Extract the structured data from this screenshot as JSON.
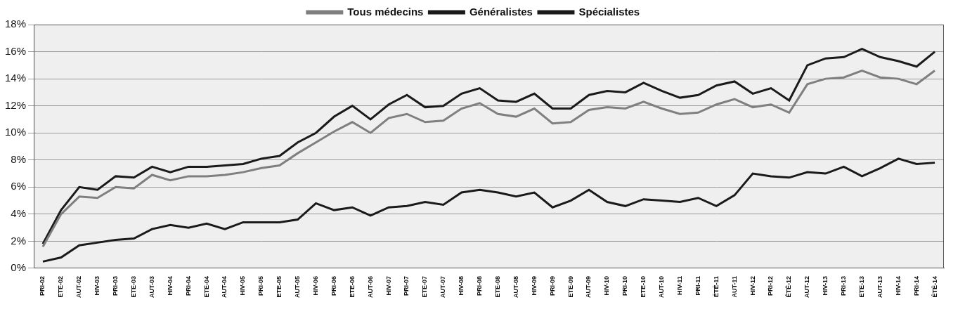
{
  "chart_data": {
    "type": "line",
    "categories": [
      "PRI-02",
      "ETE-02",
      "AUT-02",
      "HIV-03",
      "PRI-03",
      "ETE-03",
      "AUT-03",
      "HIV-04",
      "PRI-04",
      "ETE-04",
      "AUT-04",
      "HIV-05",
      "PRI-05",
      "ETE-05",
      "AUT-05",
      "HIV-06",
      "PRI-06",
      "ETE-06",
      "AUT-06",
      "HIV-07",
      "PRI-07",
      "ETE-07",
      "AUT-07",
      "HIV-08",
      "PRI-08",
      "ETE-08",
      "AUT-08",
      "HIV-09",
      "PRI-09",
      "ETE-09",
      "AUT-09",
      "HIV-10",
      "PRI-10",
      "ETE-10",
      "AUT-10",
      "HIV-11",
      "PRI-11",
      "ÉTÉ-11",
      "AUT-11",
      "HIV-12",
      "PRI-12",
      "ÉTÉ-12",
      "AUT-12",
      "HIV-13",
      "PRI-13",
      "ETE-13",
      "AUT-13",
      "HIV-14",
      "PRI-14",
      "ÉTÉ-14"
    ],
    "series": [
      {
        "name": "Tous médecins",
        "color": "#7f7f7f",
        "marker": "none",
        "line_style": "solid",
        "values": [
          1.6,
          4.0,
          5.3,
          5.2,
          6.0,
          5.9,
          6.9,
          6.5,
          6.8,
          6.8,
          6.9,
          7.1,
          7.4,
          7.6,
          8.5,
          9.3,
          10.1,
          10.8,
          10.0,
          11.1,
          11.4,
          10.8,
          10.9,
          11.8,
          12.2,
          11.4,
          11.2,
          11.8,
          10.7,
          10.8,
          11.7,
          11.9,
          11.8,
          12.3,
          11.8,
          11.4,
          11.5,
          12.1,
          12.5,
          11.9,
          12.1,
          11.5,
          13.6,
          14.0,
          14.1,
          14.6,
          14.1,
          14.0,
          13.6,
          14.6
        ]
      },
      {
        "name": "Généralistes",
        "color": "#1a1a1a",
        "marker": "none",
        "line_style": "solid",
        "values": [
          1.8,
          4.3,
          6.0,
          5.8,
          6.8,
          6.7,
          7.5,
          7.1,
          7.5,
          7.5,
          7.6,
          7.7,
          8.1,
          8.3,
          9.3,
          10.0,
          11.2,
          12.0,
          11.0,
          12.1,
          12.8,
          11.9,
          12.0,
          12.9,
          13.3,
          12.4,
          12.3,
          12.9,
          11.8,
          11.8,
          12.8,
          13.1,
          13.0,
          13.7,
          13.1,
          12.6,
          12.8,
          13.5,
          13.8,
          12.9,
          13.3,
          12.4,
          15.0,
          15.5,
          15.6,
          16.2,
          15.6,
          15.3,
          14.9,
          16.0
        ]
      },
      {
        "name": "Spécialistes",
        "color": "#1a1a1a",
        "marker": "none",
        "line_style": "solid",
        "values": [
          0.5,
          0.8,
          1.7,
          1.9,
          2.1,
          2.2,
          2.9,
          3.2,
          3.0,
          3.3,
          2.9,
          3.4,
          3.4,
          3.4,
          3.6,
          4.8,
          4.3,
          4.5,
          3.9,
          4.5,
          4.6,
          4.9,
          4.7,
          5.6,
          5.8,
          5.6,
          5.3,
          5.6,
          4.5,
          5.0,
          5.8,
          4.9,
          4.6,
          5.1,
          5.0,
          4.9,
          5.2,
          4.6,
          5.4,
          7.0,
          6.8,
          6.7,
          7.1,
          7.0,
          7.5,
          6.8,
          7.4,
          8.1,
          7.7,
          7.8
        ]
      }
    ],
    "ylim": [
      0,
      18
    ],
    "yticks": [
      {
        "value": 0,
        "label": "0%"
      },
      {
        "value": 2,
        "label": "2%"
      },
      {
        "value": 4,
        "label": "4%"
      },
      {
        "value": 6,
        "label": "6%"
      },
      {
        "value": 8,
        "label": "8%"
      },
      {
        "value": 10,
        "label": "10%"
      },
      {
        "value": 12,
        "label": "12%"
      },
      {
        "value": 14,
        "label": "14%"
      },
      {
        "value": 16,
        "label": "16%"
      },
      {
        "value": 18,
        "label": "18%"
      }
    ],
    "grid": true,
    "legend": "top"
  }
}
